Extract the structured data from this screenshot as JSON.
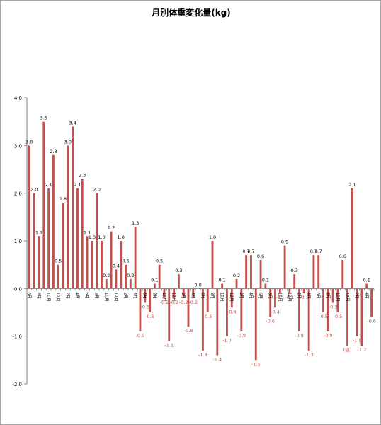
{
  "chart_data": {
    "type": "bar",
    "title": "月別体重変化量(kg)",
    "xlabel": "",
    "ylabel": "",
    "ylim": [
      -2.0,
      4.0
    ],
    "y_ticks": [
      "4.0",
      "3.0",
      "2.0",
      "1.0",
      "0.0",
      "-1.0",
      "-2.0"
    ],
    "y_tick_values": [
      4,
      3,
      2,
      1,
      0,
      -1,
      -2
    ],
    "grid": false,
    "legend": "none",
    "bar_color": "#c0504d",
    "positive_label_color": "#000000",
    "negative_label_color": "#c0504d",
    "categories": [
      "6月",
      "",
      "8月",
      "",
      "10月",
      "",
      "12月",
      "",
      "2月",
      "",
      "4月",
      "",
      "6月",
      "",
      "8月",
      "",
      "10月",
      "",
      "12月",
      "",
      "2月",
      "",
      "4月",
      "",
      "6月",
      "",
      "8月",
      "",
      "10月",
      "",
      "12月",
      "",
      "2月",
      "",
      "4月",
      "",
      "6月",
      "",
      "8月",
      "",
      "10月",
      "",
      "12月",
      "",
      "2月",
      "",
      "4月",
      "",
      "6月",
      "",
      "8月",
      "",
      "10月",
      "",
      "12月",
      "",
      "2月",
      "",
      "4月",
      "",
      "6月",
      "",
      "8月",
      "",
      "10月",
      "",
      "12月",
      "",
      "2月",
      "",
      "4月",
      ""
    ],
    "values": [
      3.0,
      2.0,
      1.1,
      3.5,
      2.1,
      2.8,
      0.5,
      1.8,
      3.0,
      3.4,
      2.1,
      2.3,
      1.1,
      1.0,
      2.0,
      1.0,
      0.2,
      1.2,
      0.4,
      1.0,
      0.5,
      0.2,
      1.3,
      -0.9,
      -0.3,
      -0.5,
      0.1,
      0.5,
      -0.2,
      -1.1,
      -0.2,
      0.3,
      -0.2,
      -0.8,
      -0.2,
      0.0,
      -1.3,
      -0.5,
      1.0,
      -1.4,
      0.1,
      -1.0,
      -0.4,
      0.2,
      -0.9,
      0.7,
      0.7,
      -1.5,
      0.6,
      0.1,
      -0.6,
      -0.4,
      -0.1,
      0.9,
      -0.1,
      0.3,
      -0.9,
      -0.1,
      -1.3,
      0.7,
      0.7,
      -0.5,
      -0.9,
      -0.3,
      -0.5,
      0.6,
      -1.2,
      2.1,
      -1.0,
      -1.2,
      0.1,
      -0.6
    ],
    "value_labels": [
      "3.0",
      "2.0",
      "1.1",
      "3.5",
      "2.1",
      "2.8",
      "0.5",
      "1.8",
      "3.0",
      "3.4",
      "2.1",
      "2.3",
      "1.1",
      "1.0",
      "2.0",
      "1.0",
      "0.2",
      "1.2",
      "0.4",
      "1.0",
      "0.5",
      "0.2",
      "1.3",
      "-0.9",
      "-0.3",
      "-0.5",
      "0.1",
      "0.5",
      "-0.2",
      "-1.1",
      "-0.2",
      "0.3",
      "-0.2",
      "-0.8",
      "-0.2",
      "0.0",
      "-1.3",
      "-0.5",
      "1.0",
      "-1.4",
      "0.1",
      "-1.0",
      "-0.4",
      "0.2",
      "-0.9",
      "0.7",
      "0.7",
      "-1.5",
      "0.6",
      "0.1",
      "-0.6",
      "-0.4",
      "-0.1",
      "0.9",
      "-0.1",
      "0.3",
      "-0.9",
      "-0.1",
      "-1.3",
      "0.7",
      "0.7",
      "-0.5",
      "-0.9",
      "-0.3",
      "-0.5",
      "0.6",
      "(値)",
      "2.1",
      "-1.0",
      "-1.2",
      "0.1",
      "-0.6"
    ]
  }
}
